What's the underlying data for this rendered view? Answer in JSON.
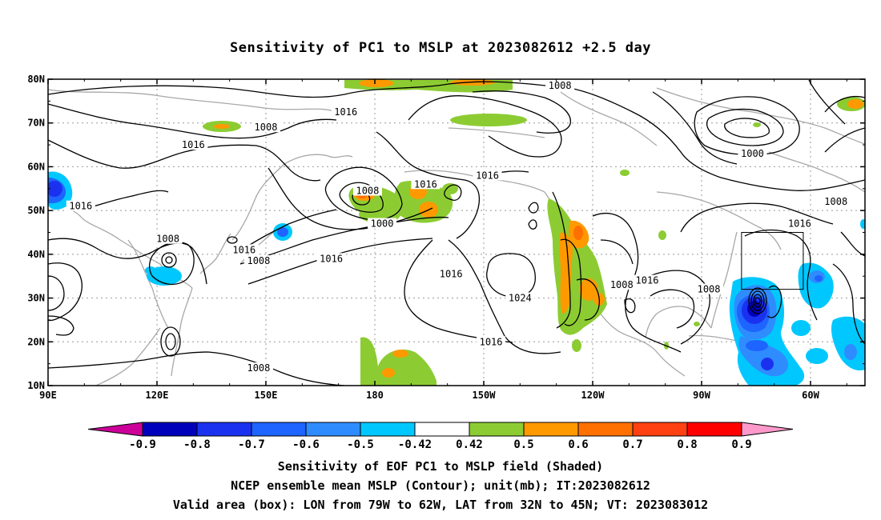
{
  "figure": {
    "title": "Sensitivity of PC1 to MSLP at 2023082612 +2.5 day",
    "caption_lines": [
      "Sensitivity of EOF PC1 to MSLP field (Shaded)",
      "NCEP ensemble mean MSLP (Contour); unit(mb); IT:2023082612",
      "Valid area (box): LON from 79W to 62W, LAT from 32N to 45N; VT: 2023083012"
    ]
  },
  "map": {
    "lon_ticks": [
      "90E",
      "120E",
      "150E",
      "180",
      "150W",
      "120W",
      "90W",
      "60W"
    ],
    "lat_ticks": [
      "10N",
      "20N",
      "30N",
      "40N",
      "50N",
      "60N",
      "70N",
      "80N"
    ],
    "valid_box": {
      "lon_min": -79,
      "lon_max": -62,
      "lat_min": 32,
      "lat_max": 45
    },
    "contour_labels": [
      {
        "text": "1008",
        "lon": -129,
        "lat": 78.5
      },
      {
        "text": "1016",
        "lon": 172,
        "lat": 72.5
      },
      {
        "text": "1008",
        "lon": 150,
        "lat": 69
      },
      {
        "text": "1016",
        "lon": 130,
        "lat": 65
      },
      {
        "text": "1000",
        "lon": -76,
        "lat": 63
      },
      {
        "text": "1016",
        "lon": -149,
        "lat": 58
      },
      {
        "text": "1016",
        "lon": -166,
        "lat": 56
      },
      {
        "text": "1008",
        "lon": 178,
        "lat": 54.5
      },
      {
        "text": "1008",
        "lon": -53,
        "lat": 52
      },
      {
        "text": "1016",
        "lon": 99,
        "lat": 51
      },
      {
        "text": "1000",
        "lon": -178,
        "lat": 47
      },
      {
        "text": "1016",
        "lon": -63,
        "lat": 47
      },
      {
        "text": "1008",
        "lon": 123,
        "lat": 43.5
      },
      {
        "text": "1016",
        "lon": 144,
        "lat": 41
      },
      {
        "text": "1008",
        "lon": 148,
        "lat": 38.5
      },
      {
        "text": "1016",
        "lon": 168,
        "lat": 39
      },
      {
        "text": "1016",
        "lon": -159,
        "lat": 35.5
      },
      {
        "text": "1016",
        "lon": -105,
        "lat": 34
      },
      {
        "text": "1008",
        "lon": -112,
        "lat": 33
      },
      {
        "text": "1008",
        "lon": -88,
        "lat": 32
      },
      {
        "text": "1024",
        "lon": -140,
        "lat": 30
      },
      {
        "text": "1016",
        "lon": -148,
        "lat": 20
      },
      {
        "text": "1008",
        "lon": 148,
        "lat": 14
      }
    ]
  },
  "colorbar": {
    "labels": [
      "-0.9",
      "-0.8",
      "-0.7",
      "-0.6",
      "-0.5",
      "-0.42",
      "0.42",
      "0.5",
      "0.6",
      "0.7",
      "0.8",
      "0.9"
    ],
    "low_color": "#cc0099",
    "colors": [
      "#0000bb",
      "#1a32f0",
      "#1e64ff",
      "#2f8cff",
      "#00c8ff",
      "#ffffff",
      "#8ccc32",
      "#ff9900",
      "#ff7000",
      "#ff4010",
      "#ff0000"
    ],
    "high_color": "#ff99cc"
  }
}
